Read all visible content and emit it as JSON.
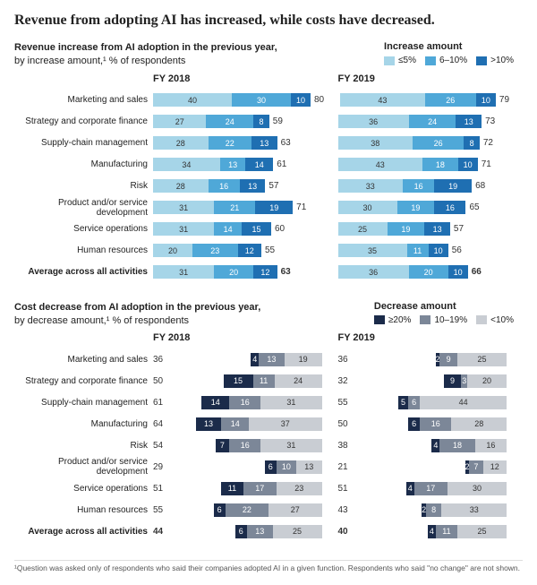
{
  "headline": "Revenue from adopting AI has increased, while costs have decreased.",
  "footnote": "¹Question was asked only of respondents who said their companies adopted AI in a given function. Respondents who said \"no change\" are not shown.",
  "colors": {
    "rev": [
      "#a6d5e8",
      "#4fa8d8",
      "#1f6fb2"
    ],
    "cost": [
      "#1b2b4a",
      "#7c8798",
      "#c9cdd3"
    ]
  },
  "scale": {
    "rev": 2.2,
    "cost": 2.2
  },
  "revenue": {
    "title_line1": "Revenue increase from AI adoption in the previous year,",
    "title_line2": "by increase amount,¹ % of respondents",
    "legend_title": "Increase amount",
    "legend_items": [
      "≤5%",
      "6–10%",
      ">10%"
    ],
    "years": [
      "FY 2018",
      "FY 2019"
    ],
    "rows": [
      {
        "label": "Marketing and sales",
        "y2018": [
          40,
          30,
          10
        ],
        "t2018": 80,
        "y2019": [
          43,
          26,
          10
        ],
        "t2019": 79,
        "avg": false
      },
      {
        "label": "Strategy and corporate finance",
        "y2018": [
          27,
          24,
          8
        ],
        "t2018": 59,
        "y2019": [
          36,
          24,
          13
        ],
        "t2019": 73,
        "avg": false
      },
      {
        "label": "Supply-chain management",
        "y2018": [
          28,
          22,
          13
        ],
        "t2018": 63,
        "y2019": [
          38,
          26,
          8
        ],
        "t2019": 72,
        "avg": false
      },
      {
        "label": "Manufacturing",
        "y2018": [
          34,
          13,
          14
        ],
        "t2018": 61,
        "y2019": [
          43,
          18,
          10
        ],
        "t2019": 71,
        "avg": false
      },
      {
        "label": "Risk",
        "y2018": [
          28,
          16,
          13
        ],
        "t2018": 57,
        "y2019": [
          33,
          16,
          19
        ],
        "t2019": 68,
        "avg": false
      },
      {
        "label": "Product and/or service development",
        "y2018": [
          31,
          21,
          19
        ],
        "t2018": 71,
        "y2019": [
          30,
          19,
          16
        ],
        "t2019": 65,
        "avg": false
      },
      {
        "label": "Service operations",
        "y2018": [
          31,
          14,
          15
        ],
        "t2018": 60,
        "y2019": [
          25,
          19,
          13
        ],
        "t2019": 57,
        "avg": false
      },
      {
        "label": "Human resources",
        "y2018": [
          20,
          23,
          12
        ],
        "t2018": 55,
        "y2019": [
          35,
          11,
          10
        ],
        "t2019": 56,
        "avg": false
      },
      {
        "label": "Average across all activities",
        "y2018": [
          31,
          20,
          12
        ],
        "t2018": 63,
        "y2019": [
          36,
          20,
          10
        ],
        "t2019": 66,
        "avg": true
      }
    ]
  },
  "cost": {
    "title_line1": "Cost decrease from AI adoption in the previous year,",
    "title_line2": "by decrease amount,¹ % of respondents",
    "legend_title": "Decrease amount",
    "legend_items": [
      "≥20%",
      "10–19%",
      "<10%"
    ],
    "years": [
      "FY 2018",
      "FY 2019"
    ],
    "rows": [
      {
        "label": "Marketing and sales",
        "y2018": [
          4,
          13,
          19
        ],
        "t2018": 36,
        "y2019": [
          2,
          9,
          25
        ],
        "t2019": 36,
        "avg": false
      },
      {
        "label": "Strategy and corporate finance",
        "y2018": [
          15,
          11,
          24
        ],
        "t2018": 50,
        "y2019": [
          9,
          3,
          20
        ],
        "t2019": 32,
        "avg": false
      },
      {
        "label": "Supply-chain management",
        "y2018": [
          14,
          16,
          31
        ],
        "t2018": 61,
        "y2019": [
          5,
          6,
          44
        ],
        "t2019": 55,
        "avg": false
      },
      {
        "label": "Manufacturing",
        "y2018": [
          13,
          14,
          37
        ],
        "t2018": 64,
        "y2019": [
          6,
          16,
          28
        ],
        "t2019": 50,
        "avg": false
      },
      {
        "label": "Risk",
        "y2018": [
          7,
          16,
          31
        ],
        "t2018": 54,
        "y2019": [
          4,
          18,
          16
        ],
        "t2019": 38,
        "avg": false
      },
      {
        "label": "Product and/or service development",
        "y2018": [
          6,
          10,
          13
        ],
        "t2018": 29,
        "y2019": [
          2,
          7,
          12
        ],
        "t2019": 21,
        "avg": false
      },
      {
        "label": "Service operations",
        "y2018": [
          11,
          17,
          23
        ],
        "t2018": 51,
        "y2019": [
          4,
          17,
          30
        ],
        "t2019": 51,
        "avg": false
      },
      {
        "label": "Human resources",
        "y2018": [
          6,
          22,
          27
        ],
        "t2018": 55,
        "y2019": [
          2,
          8,
          33
        ],
        "t2019": 43,
        "avg": false
      },
      {
        "label": "Average across all activities",
        "y2018": [
          6,
          13,
          25
        ],
        "t2018": 44,
        "y2019": [
          4,
          11,
          25
        ],
        "t2019": 40,
        "avg": true
      }
    ]
  }
}
